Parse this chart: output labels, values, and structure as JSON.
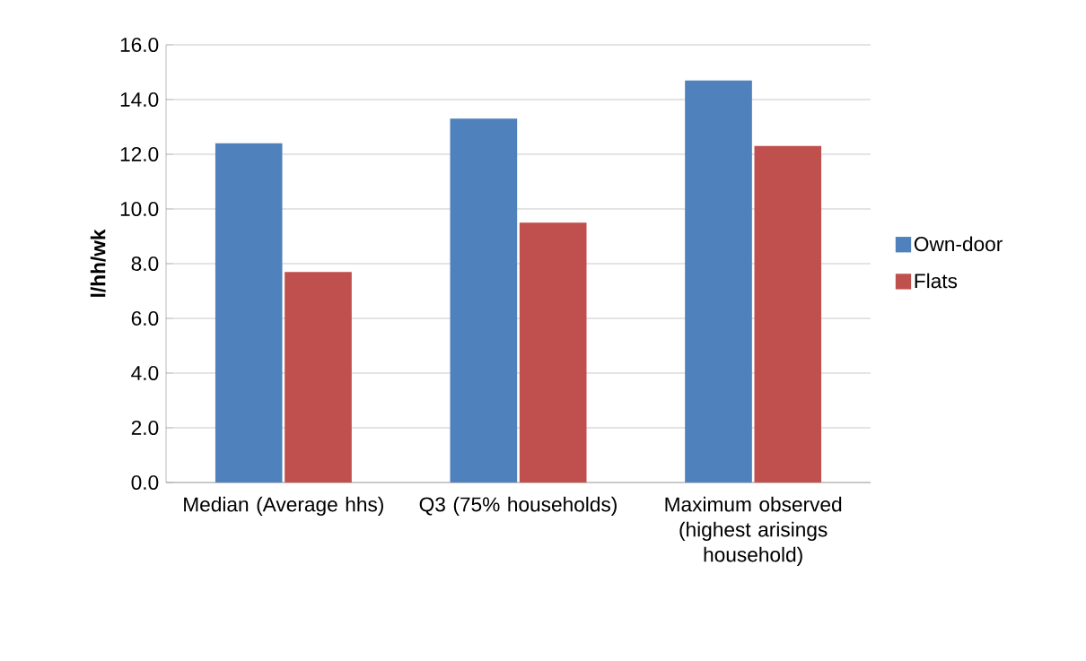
{
  "chart_data": {
    "type": "bar",
    "ylabel": "l/hh/wk",
    "categories": [
      "Median (Average hhs)",
      "Q3 (75% households)",
      "Maximum observed (highest arisings household)"
    ],
    "series": [
      {
        "name": "Own-door",
        "color": "#4f81bd",
        "values": [
          12.4,
          13.3,
          14.7
        ]
      },
      {
        "name": "Flats",
        "color": "#c0504d",
        "values": [
          7.7,
          9.5,
          12.3
        ]
      }
    ],
    "ylim": [
      0,
      16
    ],
    "yticks": [
      {
        "value": 0,
        "label": "0.0"
      },
      {
        "value": 2,
        "label": "2.0"
      },
      {
        "value": 4,
        "label": "4.0"
      },
      {
        "value": 6,
        "label": "6.0"
      },
      {
        "value": 8,
        "label": "8.0"
      },
      {
        "value": 10,
        "label": "10.0"
      },
      {
        "value": 12,
        "label": "12.0"
      },
      {
        "value": 14,
        "label": "14.0"
      },
      {
        "value": 16,
        "label": "16.0"
      }
    ],
    "grid": "y",
    "legend": "right"
  }
}
